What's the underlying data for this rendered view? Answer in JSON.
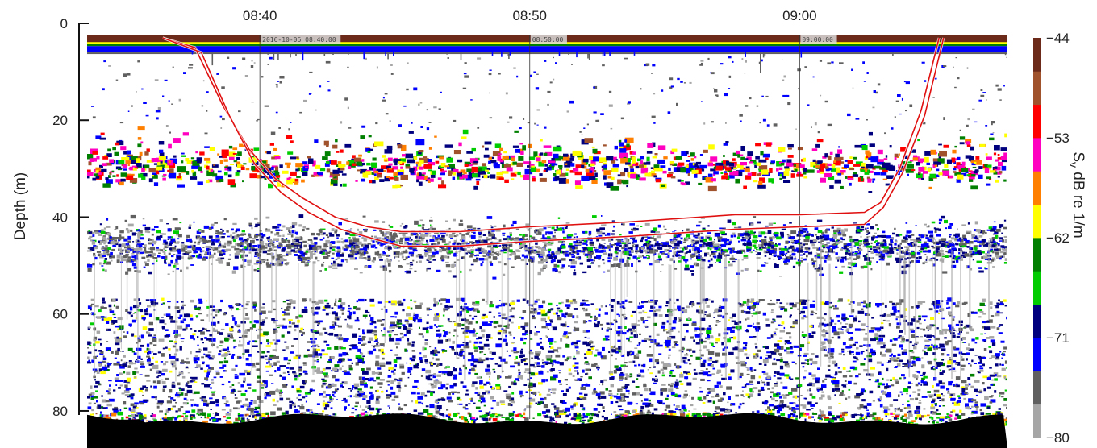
{
  "chart_data": {
    "type": "heatmap",
    "title": "",
    "ylabel": "Depth (m)",
    "ylim": [
      0,
      84
    ],
    "y_inverted": true,
    "y_ticks": [
      {
        "value": 0,
        "label": "0"
      },
      {
        "value": 20,
        "label": "20"
      },
      {
        "value": 40,
        "label": "40"
      },
      {
        "value": 60,
        "label": "60"
      },
      {
        "value": 80,
        "label": "80"
      }
    ],
    "x_ticks": [
      {
        "time": "08:40",
        "label": "08:40",
        "stamp": "2016-10-06 08:40:00"
      },
      {
        "time": "08:50",
        "label": "08:50",
        "stamp": "08:50:00"
      },
      {
        "time": "09:00",
        "label": "09:00",
        "stamp": "09:00:00"
      }
    ],
    "x_range": [
      "08:33:36",
      "09:07:42"
    ],
    "colorbar": {
      "label_main": "S",
      "label_sub": "v",
      "label_rest": " dB re 1/m",
      "range": [
        -80,
        -44
      ],
      "tick_values": [
        -44,
        -53,
        -62,
        -71,
        -80
      ],
      "tick_labels": [
        "−44",
        "−53",
        "−62",
        "−71",
        "−80"
      ],
      "colors": [
        "#a6a6a6",
        "#606060",
        "#0000ff",
        "#00007f",
        "#00cc00",
        "#007f00",
        "#ffff00",
        "#ff8000",
        "#ff00c0",
        "#ff0000",
        "#a0522d",
        "#6b2a1a"
      ]
    },
    "layers": [
      {
        "name": "surface band",
        "depth": [
          3,
          6
        ],
        "level_db": -44
      },
      {
        "name": "fish schools",
        "depth": [
          22,
          40
        ],
        "level_db": -55
      },
      {
        "name": "scattering layer",
        "depth": [
          38,
          55
        ],
        "level_db": -68
      },
      {
        "name": "deep scatterers",
        "depth": [
          55,
          82
        ],
        "level_db": -70
      },
      {
        "name": "seabed",
        "depth": [
          80,
          84
        ],
        "level_db": -44
      }
    ],
    "trawl_track": {
      "color": "#e01010",
      "upper": [
        {
          "time": "08:36:24",
          "depth": 3
        },
        {
          "time": "08:37:36",
          "depth": 5
        },
        {
          "time": "08:38:38",
          "depth": 17
        },
        {
          "time": "08:39:36",
          "depth": 26
        },
        {
          "time": "08:40:34",
          "depth": 32
        },
        {
          "time": "08:41:34",
          "depth": 36
        },
        {
          "time": "08:42:48",
          "depth": 40
        },
        {
          "time": "08:44:00",
          "depth": 42
        },
        {
          "time": "08:45:14",
          "depth": 43
        },
        {
          "time": "08:47:24",
          "depth": 43
        },
        {
          "time": "08:50:00",
          "depth": 42
        },
        {
          "time": "08:53:36",
          "depth": 41
        },
        {
          "time": "08:57:36",
          "depth": 39.5
        },
        {
          "time": "09:00:00",
          "depth": 39.5
        },
        {
          "time": "09:02:24",
          "depth": 39
        },
        {
          "time": "09:03:00",
          "depth": 37
        },
        {
          "time": "09:03:42",
          "depth": 30
        },
        {
          "time": "09:04:30",
          "depth": 18
        },
        {
          "time": "09:05:10",
          "depth": 3
        }
      ],
      "lower": [
        {
          "time": "08:36:24",
          "depth": 3
        },
        {
          "time": "08:37:50",
          "depth": 6
        },
        {
          "time": "08:38:52",
          "depth": 19
        },
        {
          "time": "08:39:48",
          "depth": 29
        },
        {
          "time": "08:40:48",
          "depth": 35
        },
        {
          "time": "08:41:48",
          "depth": 39
        },
        {
          "time": "08:43:00",
          "depth": 42.5
        },
        {
          "time": "08:44:14",
          "depth": 44.5
        },
        {
          "time": "08:45:14",
          "depth": 46
        },
        {
          "time": "08:47:24",
          "depth": 46
        },
        {
          "time": "08:50:00",
          "depth": 45
        },
        {
          "time": "08:53:36",
          "depth": 44
        },
        {
          "time": "08:57:36",
          "depth": 42.5
        },
        {
          "time": "09:00:00",
          "depth": 42
        },
        {
          "time": "09:02:24",
          "depth": 41.5
        },
        {
          "time": "09:03:06",
          "depth": 38
        },
        {
          "time": "09:03:48",
          "depth": 31
        },
        {
          "time": "09:04:38",
          "depth": 19
        },
        {
          "time": "09:05:20",
          "depth": 3
        }
      ]
    }
  }
}
